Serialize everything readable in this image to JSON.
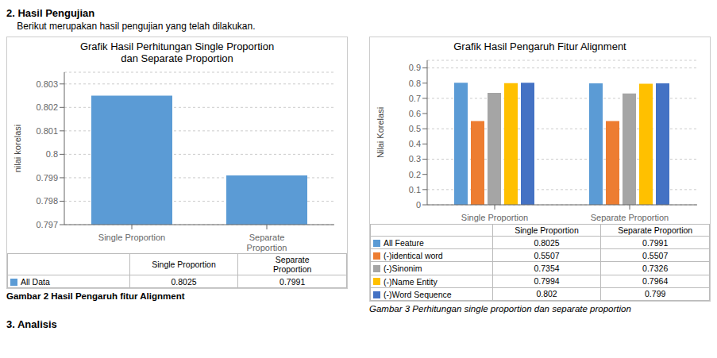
{
  "chart_data": [
    {
      "type": "bar",
      "title": "Grafik Hasil Perhitungan Single Proportion\ndan Separate Proportion",
      "annotations": [
        "2. Hasil Pengujian",
        "    Berikut merupakan hasil pengujian yang telah dilakukan.",
        "Gambar 2 Hasil Pengaruh fitur Alignment",
        "3. Analisis"
      ],
      "categories": [
        "Single Proportion",
        "Separate\nProportion"
      ],
      "series": [
        {
          "name": "All Data",
          "color": "#5B9BD5",
          "values": [
            0.8025,
            0.7991
          ]
        }
      ],
      "ylabel": "nilai korelasi",
      "ylim": [
        0.797,
        0.8035
      ],
      "yticks": [
        0.797,
        0.798,
        0.799,
        0.8,
        0.801,
        0.802,
        0.803
      ],
      "grid": true
    },
    {
      "type": "bar",
      "title": "Grafik Hasil Pengaruh Fitur Alignment",
      "annotations": [
        "Gambar 3 Perhitungan single proportion dan separate proportion"
      ],
      "categories": [
        "Single Proportion",
        "Separate Proportion"
      ],
      "series": [
        {
          "name": "All Feature",
          "color": "#5B9BD5",
          "values": [
            0.8025,
            0.7991
          ]
        },
        {
          "name": "(-)identical word",
          "color": "#ED7D31",
          "values": [
            0.5507,
            0.5507
          ]
        },
        {
          "name": "(-)Sinonim",
          "color": "#A5A5A5",
          "values": [
            0.7354,
            0.7326
          ]
        },
        {
          "name": "(-)Name Entity",
          "color": "#FFC000",
          "values": [
            0.7994,
            0.7964
          ]
        },
        {
          "name": "(-)Word Sequence",
          "color": "#4472C4",
          "values": [
            0.802,
            0.799
          ]
        }
      ],
      "ylabel": "Nilai Korelasi",
      "ylim": [
        0,
        0.95
      ],
      "yticks": [
        0,
        0.1,
        0.2,
        0.3,
        0.4,
        0.5,
        0.6,
        0.7,
        0.8,
        0.9
      ],
      "grid": true
    }
  ]
}
